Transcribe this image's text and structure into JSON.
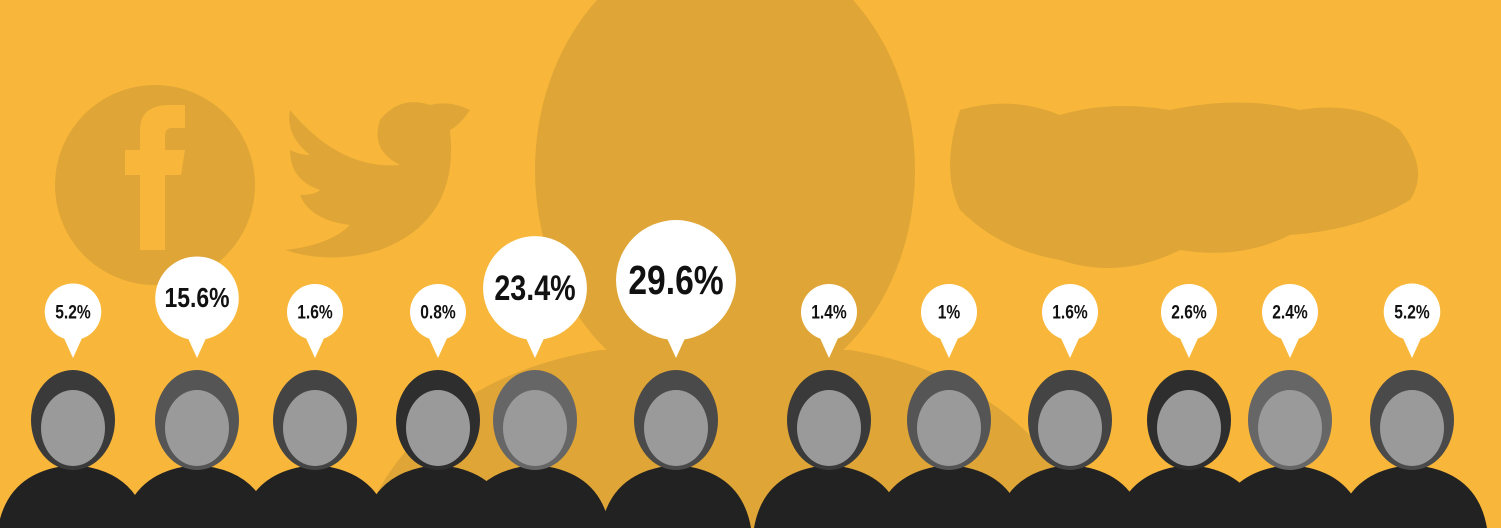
{
  "chart_data": {
    "type": "bubble",
    "values": [
      5.2,
      15.6,
      1.6,
      0.8,
      23.4,
      29.6,
      1.4,
      1,
      1.6,
      2.6,
      2.4,
      5.2
    ],
    "value_labels": [
      "5.2%",
      "15.6%",
      "1.6%",
      "0.8%",
      "23.4%",
      "29.6%",
      "1.4%",
      "1%",
      "1.6%",
      "2.6%",
      "2.4%",
      "5.2%"
    ],
    "color": "#ffffff"
  }
}
